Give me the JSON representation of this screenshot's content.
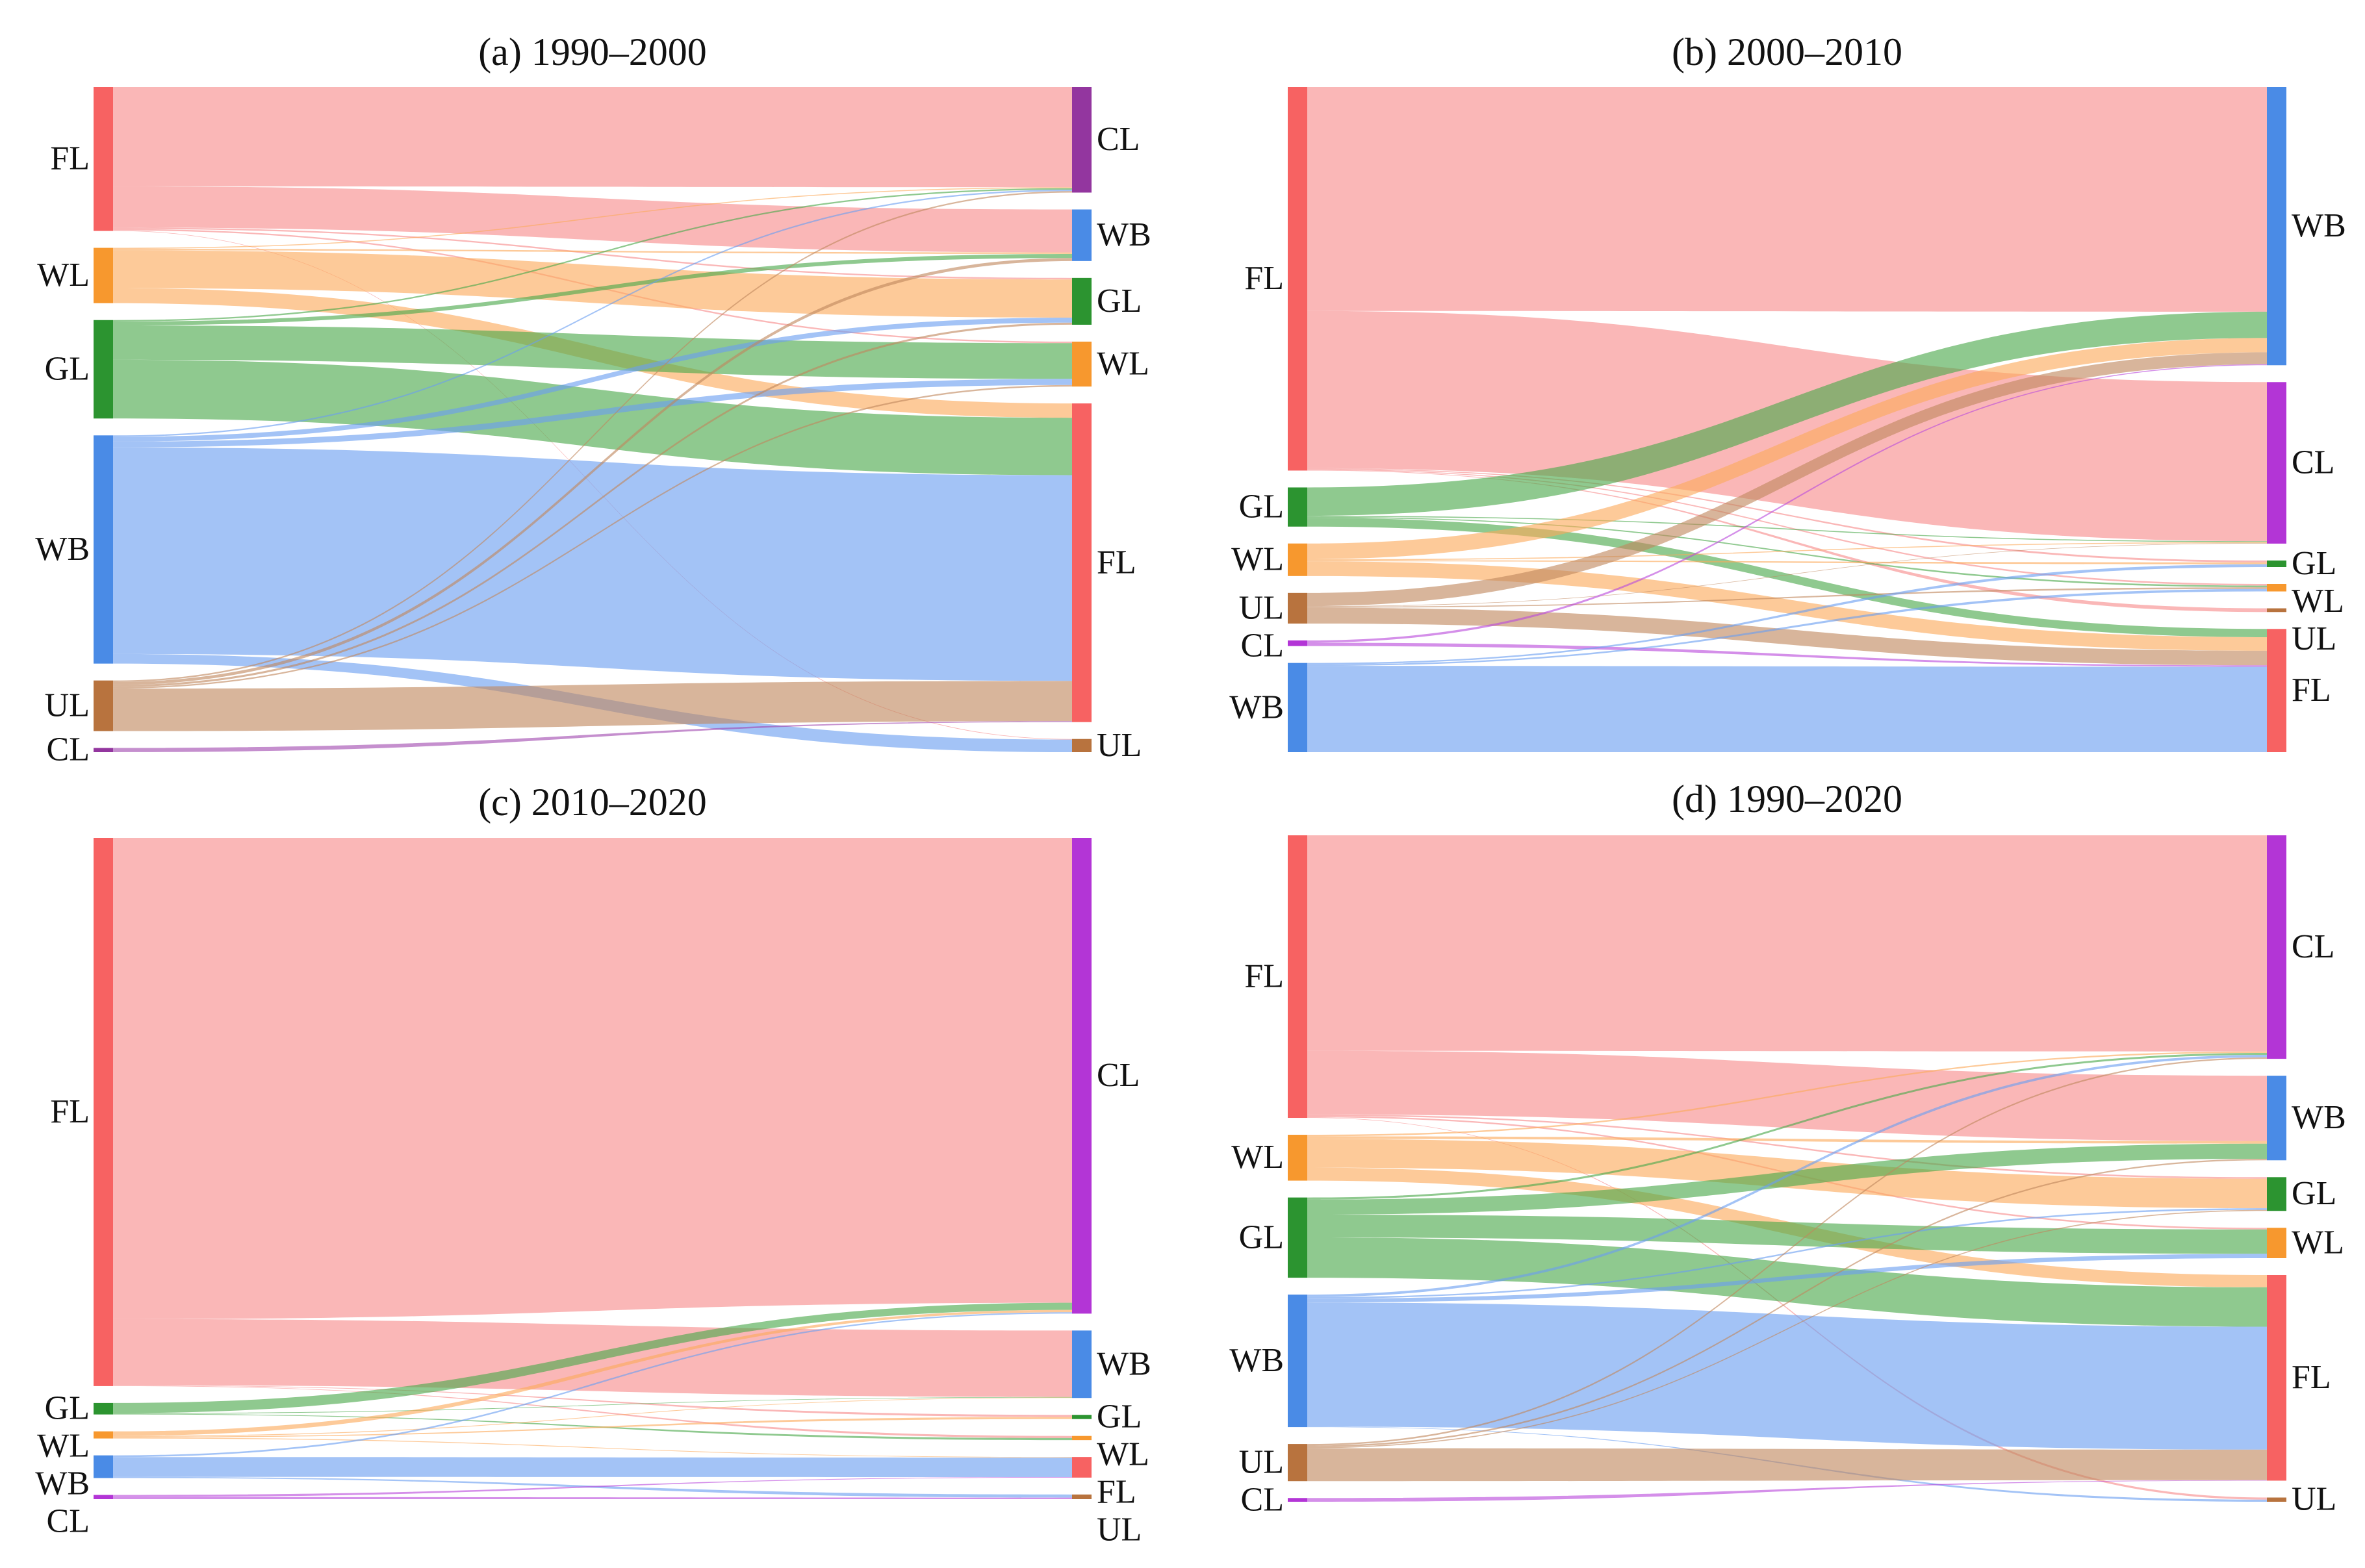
{
  "colors": {
    "FL": {
      "node": "#f76262",
      "link": "#f78a8a"
    },
    "WL": {
      "node": "#f7982e",
      "link": "#fba95a"
    },
    "GL": {
      "node": "#2c9430",
      "link": "#4aa84a"
    },
    "WB": {
      "node": "#4a8be6",
      "link": "#6a9ef0"
    },
    "UL": {
      "node": "#b8733e",
      "link": "#c0885e"
    },
    "CL": {
      "node": "#b335d6",
      "link": "#b94adb"
    },
    "CL_a": {
      "node": "#93369f",
      "link": "#a24bb0"
    }
  },
  "chart_data": [
    {
      "type": "sankey",
      "title": "(a) 1990–2000",
      "left": [
        {
          "label": "FL"
        },
        {
          "label": "WL"
        },
        {
          "label": "GL"
        },
        {
          "label": "WB"
        },
        {
          "label": "UL"
        },
        {
          "label": "CL"
        }
      ],
      "right": [
        {
          "label": "CL"
        },
        {
          "label": "WB"
        },
        {
          "label": "GL"
        },
        {
          "label": "WL"
        },
        {
          "label": "FL"
        },
        {
          "label": "UL"
        }
      ],
      "flows": [
        {
          "source": "FL",
          "target": "CL",
          "value": 205
        },
        {
          "source": "FL",
          "target": "WB",
          "value": 85
        },
        {
          "source": "FL",
          "target": "GL",
          "value": 3
        },
        {
          "source": "FL",
          "target": "WL",
          "value": 3
        },
        {
          "source": "FL",
          "target": "UL",
          "value": 1
        },
        {
          "source": "WL",
          "target": "CL",
          "value": 2
        },
        {
          "source": "WL",
          "target": "WB",
          "value": 3
        },
        {
          "source": "WL",
          "target": "GL",
          "value": 75
        },
        {
          "source": "WL",
          "target": "FL",
          "value": 30
        },
        {
          "source": "GL",
          "target": "CL",
          "value": 3
        },
        {
          "source": "GL",
          "target": "WB",
          "value": 8
        },
        {
          "source": "GL",
          "target": "WL",
          "value": 70
        },
        {
          "source": "GL",
          "target": "FL",
          "value": 120
        },
        {
          "source": "WB",
          "target": "CL",
          "value": 3
        },
        {
          "source": "WB",
          "target": "GL",
          "value": 10
        },
        {
          "source": "WB",
          "target": "WL",
          "value": 12
        },
        {
          "source": "WB",
          "target": "FL",
          "value": 430
        },
        {
          "source": "WB",
          "target": "UL",
          "value": 20
        },
        {
          "source": "UL",
          "target": "CL",
          "value": 3
        },
        {
          "source": "UL",
          "target": "WB",
          "value": 6
        },
        {
          "source": "UL",
          "target": "GL",
          "value": 4
        },
        {
          "source": "UL",
          "target": "WL",
          "value": 3
        },
        {
          "source": "UL",
          "target": "FL",
          "value": 84
        },
        {
          "source": "CL",
          "target": "FL",
          "value": 2
        }
      ]
    },
    {
      "type": "sankey",
      "title": "(b) 2000–2010",
      "left": [
        {
          "label": "FL"
        },
        {
          "label": "GL"
        },
        {
          "label": "WL"
        },
        {
          "label": "UL"
        },
        {
          "label": "CL"
        },
        {
          "label": "WB"
        }
      ],
      "right": [
        {
          "label": "WB"
        },
        {
          "label": "CL"
        },
        {
          "label": "GL"
        },
        {
          "label": "WL"
        },
        {
          "label": "UL"
        },
        {
          "label": "FL"
        }
      ],
      "flows": [
        {
          "source": "FL",
          "target": "WB",
          "value": 470
        },
        {
          "source": "FL",
          "target": "CL",
          "value": 330
        },
        {
          "source": "FL",
          "target": "GL",
          "value": 2
        },
        {
          "source": "FL",
          "target": "WL",
          "value": 2
        },
        {
          "source": "FL",
          "target": "UL",
          "value": 1
        },
        {
          "source": "GL",
          "target": "WB",
          "value": 55
        },
        {
          "source": "GL",
          "target": "CL",
          "value": 2
        },
        {
          "source": "GL",
          "target": "WL",
          "value": 2
        },
        {
          "source": "GL",
          "target": "FL",
          "value": 17
        },
        {
          "source": "WL",
          "target": "WB",
          "value": 30
        },
        {
          "source": "WL",
          "target": "CL",
          "value": 2
        },
        {
          "source": "WL",
          "target": "GL",
          "value": 2
        },
        {
          "source": "WL",
          "target": "FL",
          "value": 28
        },
        {
          "source": "UL",
          "target": "WB",
          "value": 25
        },
        {
          "source": "UL",
          "target": "CL",
          "value": 1
        },
        {
          "source": "UL",
          "target": "WL",
          "value": 2
        },
        {
          "source": "UL",
          "target": "FL",
          "value": 30
        },
        {
          "source": "CL",
          "target": "WB",
          "value": 2
        },
        {
          "source": "CL",
          "target": "FL",
          "value": 3
        },
        {
          "source": "WB",
          "target": "GL",
          "value": 3
        },
        {
          "source": "WB",
          "target": "WL",
          "value": 3
        },
        {
          "source": "WB",
          "target": "FL",
          "value": 176
        }
      ]
    },
    {
      "type": "sankey",
      "title": "(c) 2010–2020",
      "left": [
        {
          "label": "FL"
        },
        {
          "label": "GL"
        },
        {
          "label": "WL"
        },
        {
          "label": "WB"
        },
        {
          "label": "CL"
        }
      ],
      "right": [
        {
          "label": "CL"
        },
        {
          "label": "WB"
        },
        {
          "label": "GL"
        },
        {
          "label": "WL"
        },
        {
          "label": "FL"
        },
        {
          "label": "UL"
        }
      ],
      "flows": [
        {
          "source": "FL",
          "target": "CL",
          "value": 985
        },
        {
          "source": "FL",
          "target": "WB",
          "value": 135
        },
        {
          "source": "FL",
          "target": "GL",
          "value": 1
        },
        {
          "source": "FL",
          "target": "WL",
          "value": 1
        },
        {
          "source": "GL",
          "target": "CL",
          "value": 15
        },
        {
          "source": "GL",
          "target": "WB",
          "value": 1
        },
        {
          "source": "GL",
          "target": "WL",
          "value": 1
        },
        {
          "source": "WL",
          "target": "CL",
          "value": 5
        },
        {
          "source": "WL",
          "target": "WB",
          "value": 1
        },
        {
          "source": "WL",
          "target": "GL",
          "value": 1
        },
        {
          "source": "WL",
          "target": "FL",
          "value": 1
        },
        {
          "source": "WB",
          "target": "CL",
          "value": 3
        },
        {
          "source": "WB",
          "target": "FL",
          "value": 35
        },
        {
          "source": "WB",
          "target": "UL",
          "value": 2
        },
        {
          "source": "CL",
          "target": "FL",
          "value": 1
        },
        {
          "source": "CL",
          "target": "UL",
          "value": 1
        }
      ]
    },
    {
      "type": "sankey",
      "title": "(d) 1990–2020",
      "left": [
        {
          "label": "FL"
        },
        {
          "label": "WL"
        },
        {
          "label": "GL"
        },
        {
          "label": "WB"
        },
        {
          "label": "UL"
        },
        {
          "label": "CL"
        }
      ],
      "right": [
        {
          "label": "CL"
        },
        {
          "label": "WB"
        },
        {
          "label": "GL"
        },
        {
          "label": "WL"
        },
        {
          "label": "FL"
        },
        {
          "label": "UL"
        }
      ],
      "flows": [
        {
          "source": "FL",
          "target": "CL",
          "value": 440
        },
        {
          "source": "FL",
          "target": "WB",
          "value": 130
        },
        {
          "source": "FL",
          "target": "GL",
          "value": 3
        },
        {
          "source": "FL",
          "target": "WL",
          "value": 3
        },
        {
          "source": "FL",
          "target": "UL",
          "value": 1
        },
        {
          "source": "WL",
          "target": "CL",
          "value": 3
        },
        {
          "source": "WL",
          "target": "WB",
          "value": 5
        },
        {
          "source": "WL",
          "target": "GL",
          "value": 55
        },
        {
          "source": "WL",
          "target": "FL",
          "value": 25
        },
        {
          "source": "GL",
          "target": "CL",
          "value": 4
        },
        {
          "source": "GL",
          "target": "WB",
          "value": 30
        },
        {
          "source": "GL",
          "target": "WL",
          "value": 45
        },
        {
          "source": "GL",
          "target": "FL",
          "value": 80
        },
        {
          "source": "WB",
          "target": "CL",
          "value": 5
        },
        {
          "source": "WB",
          "target": "GL",
          "value": 3
        },
        {
          "source": "WB",
          "target": "WL",
          "value": 8
        },
        {
          "source": "WB",
          "target": "FL",
          "value": 250
        },
        {
          "source": "WB",
          "target": "UL",
          "value": 1
        },
        {
          "source": "UL",
          "target": "CL",
          "value": 3
        },
        {
          "source": "UL",
          "target": "WB",
          "value": 3
        },
        {
          "source": "UL",
          "target": "GL",
          "value": 2
        },
        {
          "source": "UL",
          "target": "FL",
          "value": 62
        },
        {
          "source": "CL",
          "target": "FL",
          "value": 1
        }
      ]
    }
  ]
}
